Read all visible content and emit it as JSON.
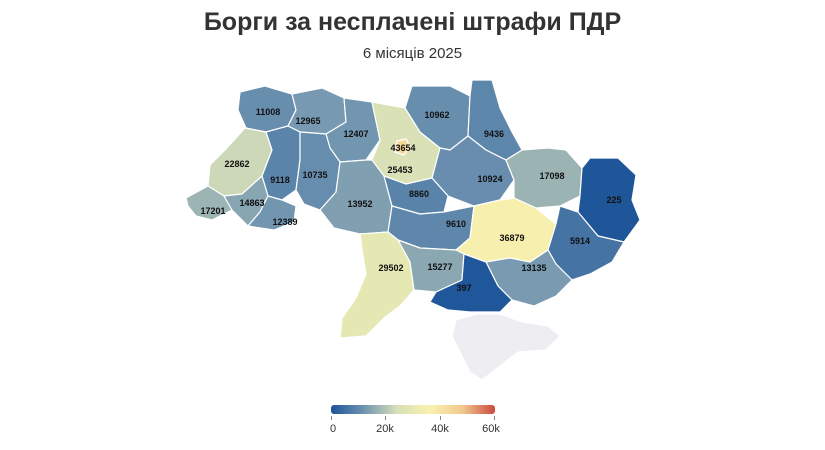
{
  "title": "Борги за несплачені штрафи ПДР",
  "subtitle": "6 місяців 2025",
  "legend": {
    "min": 0,
    "max": 60000,
    "ticks": [
      "0",
      "20k",
      "40k",
      "60k"
    ],
    "colors": [
      "#1d5499",
      "#6f93b0",
      "#d6dfb8",
      "#f8f2b0",
      "#f1c98f",
      "#cc4a40"
    ]
  },
  "no_data_color": "#eeeef2",
  "regions": [
    {
      "id": "volyn",
      "value": 11008,
      "label": "11008"
    },
    {
      "id": "rivne",
      "value": 12965,
      "label": "12965"
    },
    {
      "id": "zhytomyr",
      "value": 12407,
      "label": "12407"
    },
    {
      "id": "kyiv-oblast",
      "value": 25453,
      "label": "25453"
    },
    {
      "id": "kyiv-city",
      "value": 43654,
      "label": "43654"
    },
    {
      "id": "chernihiv",
      "value": 10962,
      "label": "10962"
    },
    {
      "id": "sumy",
      "value": 9436,
      "label": "9436"
    },
    {
      "id": "lviv",
      "value": 22862,
      "label": "22862"
    },
    {
      "id": "ternopil",
      "value": 9118,
      "label": "9118"
    },
    {
      "id": "khmelnytskyi",
      "value": 10735,
      "label": "10735"
    },
    {
      "id": "poltava",
      "value": 10924,
      "label": "10924"
    },
    {
      "id": "kharkiv",
      "value": 17098,
      "label": "17098"
    },
    {
      "id": "luhansk",
      "value": 225,
      "label": "225"
    },
    {
      "id": "zakarpattia",
      "value": 17201,
      "label": "17201"
    },
    {
      "id": "ivano-frankivsk",
      "value": 14863,
      "label": "14863"
    },
    {
      "id": "chernivtsi",
      "value": 12389,
      "label": "12389"
    },
    {
      "id": "vinnytsia",
      "value": 13952,
      "label": "13952"
    },
    {
      "id": "cherkasy",
      "value": 8860,
      "label": "8860"
    },
    {
      "id": "kirovohrad",
      "value": 9610,
      "label": "9610"
    },
    {
      "id": "dnipropetrovsk",
      "value": 36879,
      "label": "36879"
    },
    {
      "id": "donetsk",
      "value": 5914,
      "label": "5914"
    },
    {
      "id": "odesa",
      "value": 29502,
      "label": "29502"
    },
    {
      "id": "mykolaiv",
      "value": 15277,
      "label": "15277"
    },
    {
      "id": "zaporizhzhia",
      "value": 13135,
      "label": "13135"
    },
    {
      "id": "kherson",
      "value": 397,
      "label": "397"
    },
    {
      "id": "crimea",
      "value": null,
      "label": ""
    }
  ]
}
